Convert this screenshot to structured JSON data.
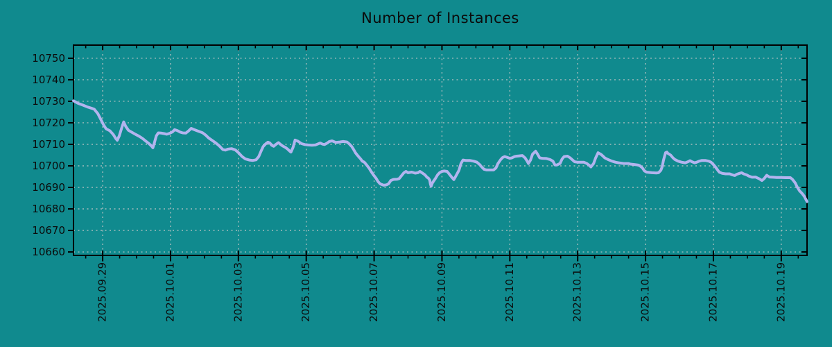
{
  "colors": {
    "background": "#108a8e",
    "line": "#b2b4ee",
    "grid": "#c2c6c6",
    "frame": "#000000",
    "text": "#0b0b0b"
  },
  "chart_data": {
    "type": "line",
    "title": "Number of Instances",
    "xlabel": "",
    "ylabel": "",
    "legend": false,
    "grid": true,
    "x_tick_labels": [
      "2025.09.29",
      "2025.10.01",
      "2025.10.03",
      "2025.10.05",
      "2025.10.07",
      "2025.10.09",
      "2025.10.11",
      "2025.10.13",
      "2025.10.15",
      "2025.10.17",
      "2025.10.19"
    ],
    "x_tick_days": [
      0,
      2,
      4,
      6,
      8,
      10,
      12,
      14,
      16,
      18,
      20
    ],
    "x_minor_tick_step_days": 0.5,
    "xlim_days": [
      -0.86,
      20.76
    ],
    "y_ticks": [
      10660,
      10670,
      10680,
      10690,
      10700,
      10710,
      10720,
      10730,
      10740,
      10750
    ],
    "ylim": [
      10658.4,
      10756.1
    ],
    "series": [
      {
        "name": "instances",
        "points": [
          [
            -0.86,
            10730.2
          ],
          [
            -0.72,
            10729.0
          ],
          [
            -0.58,
            10728.2
          ],
          [
            -0.44,
            10727.3
          ],
          [
            -0.33,
            10726.8
          ],
          [
            -0.25,
            10726.3
          ],
          [
            -0.14,
            10724.2
          ],
          [
            -0.06,
            10721.8
          ],
          [
            0.02,
            10719.2
          ],
          [
            0.1,
            10717.2
          ],
          [
            0.21,
            10716.3
          ],
          [
            0.31,
            10714.6
          ],
          [
            0.39,
            10712.6
          ],
          [
            0.43,
            10711.9
          ],
          [
            0.49,
            10714.0
          ],
          [
            0.56,
            10717.6
          ],
          [
            0.62,
            10720.4
          ],
          [
            0.68,
            10718.3
          ],
          [
            0.76,
            10716.5
          ],
          [
            0.86,
            10715.6
          ],
          [
            0.97,
            10714.6
          ],
          [
            1.07,
            10713.8
          ],
          [
            1.17,
            10712.8
          ],
          [
            1.27,
            10711.5
          ],
          [
            1.36,
            10710.4
          ],
          [
            1.44,
            10709.2
          ],
          [
            1.48,
            10708.4
          ],
          [
            1.52,
            10710.5
          ],
          [
            1.58,
            10713.9
          ],
          [
            1.64,
            10715.3
          ],
          [
            1.73,
            10715.2
          ],
          [
            1.81,
            10715.0
          ],
          [
            1.89,
            10714.7
          ],
          [
            1.97,
            10715.1
          ],
          [
            2.06,
            10715.8
          ],
          [
            2.12,
            10716.8
          ],
          [
            2.2,
            10716.4
          ],
          [
            2.28,
            10715.7
          ],
          [
            2.36,
            10715.3
          ],
          [
            2.45,
            10715.2
          ],
          [
            2.53,
            10716.2
          ],
          [
            2.61,
            10717.4
          ],
          [
            2.69,
            10716.9
          ],
          [
            2.77,
            10716.4
          ],
          [
            2.86,
            10715.9
          ],
          [
            2.94,
            10715.4
          ],
          [
            3.04,
            10714.2
          ],
          [
            3.12,
            10713.0
          ],
          [
            3.23,
            10711.8
          ],
          [
            3.33,
            10710.7
          ],
          [
            3.43,
            10709.4
          ],
          [
            3.54,
            10707.6
          ],
          [
            3.62,
            10707.3
          ],
          [
            3.7,
            10707.8
          ],
          [
            3.8,
            10708.0
          ],
          [
            3.91,
            10707.4
          ],
          [
            4.01,
            10706.0
          ],
          [
            4.11,
            10704.3
          ],
          [
            4.21,
            10703.2
          ],
          [
            4.32,
            10702.7
          ],
          [
            4.42,
            10702.5
          ],
          [
            4.52,
            10702.8
          ],
          [
            4.6,
            10704.3
          ],
          [
            4.67,
            10706.9
          ],
          [
            4.73,
            10709.0
          ],
          [
            4.81,
            10710.3
          ],
          [
            4.87,
            10711.0
          ],
          [
            4.93,
            10710.6
          ],
          [
            4.98,
            10709.6
          ],
          [
            5.04,
            10709.1
          ],
          [
            5.1,
            10709.9
          ],
          [
            5.18,
            10710.8
          ],
          [
            5.24,
            10710.0
          ],
          [
            5.3,
            10709.3
          ],
          [
            5.39,
            10708.5
          ],
          [
            5.45,
            10707.8
          ],
          [
            5.51,
            10706.9
          ],
          [
            5.55,
            10706.4
          ],
          [
            5.61,
            10708.5
          ],
          [
            5.67,
            10712.0
          ],
          [
            5.76,
            10711.4
          ],
          [
            5.86,
            10710.3
          ],
          [
            5.96,
            10709.9
          ],
          [
            6.06,
            10709.7
          ],
          [
            6.17,
            10709.6
          ],
          [
            6.27,
            10709.7
          ],
          [
            6.33,
            10710.1
          ],
          [
            6.41,
            10710.6
          ],
          [
            6.48,
            10710.1
          ],
          [
            6.54,
            10709.9
          ],
          [
            6.62,
            10710.6
          ],
          [
            6.68,
            10711.3
          ],
          [
            6.76,
            10711.6
          ],
          [
            6.87,
            10710.9
          ],
          [
            6.99,
            10711.1
          ],
          [
            7.09,
            10711.3
          ],
          [
            7.2,
            10711.1
          ],
          [
            7.26,
            10710.3
          ],
          [
            7.34,
            10709.0
          ],
          [
            7.4,
            10707.5
          ],
          [
            7.46,
            10705.9
          ],
          [
            7.54,
            10704.3
          ],
          [
            7.61,
            10703.1
          ],
          [
            7.65,
            10702.2
          ],
          [
            7.71,
            10701.7
          ],
          [
            7.77,
            10700.6
          ],
          [
            7.85,
            10699.0
          ],
          [
            7.91,
            10697.4
          ],
          [
            7.98,
            10695.8
          ],
          [
            8.06,
            10694.2
          ],
          [
            8.12,
            10692.6
          ],
          [
            8.18,
            10691.6
          ],
          [
            8.28,
            10691.0
          ],
          [
            8.37,
            10691.2
          ],
          [
            8.43,
            10691.7
          ],
          [
            8.49,
            10693.2
          ],
          [
            8.57,
            10693.7
          ],
          [
            8.68,
            10693.8
          ],
          [
            8.74,
            10694.1
          ],
          [
            8.8,
            10695.3
          ],
          [
            8.88,
            10696.8
          ],
          [
            8.94,
            10697.4
          ],
          [
            9.0,
            10696.8
          ],
          [
            9.11,
            10697.1
          ],
          [
            9.21,
            10696.6
          ],
          [
            9.29,
            10696.8
          ],
          [
            9.35,
            10697.4
          ],
          [
            9.41,
            10696.8
          ],
          [
            9.5,
            10695.8
          ],
          [
            9.56,
            10694.7
          ],
          [
            9.6,
            10694.3
          ],
          [
            9.64,
            10693.4
          ],
          [
            9.66,
            10691.5
          ],
          [
            9.68,
            10690.5
          ],
          [
            9.72,
            10692.1
          ],
          [
            9.81,
            10694.2
          ],
          [
            9.87,
            10695.8
          ],
          [
            9.93,
            10696.8
          ],
          [
            10.0,
            10697.4
          ],
          [
            10.06,
            10697.6
          ],
          [
            10.15,
            10697.4
          ],
          [
            10.21,
            10696.3
          ],
          [
            10.29,
            10694.7
          ],
          [
            10.35,
            10693.6
          ],
          [
            10.41,
            10695.3
          ],
          [
            10.5,
            10697.9
          ],
          [
            10.56,
            10701.1
          ],
          [
            10.62,
            10702.7
          ],
          [
            10.7,
            10702.5
          ],
          [
            10.82,
            10702.5
          ],
          [
            10.93,
            10702.2
          ],
          [
            11.03,
            10701.7
          ],
          [
            11.11,
            10700.6
          ],
          [
            11.17,
            10699.5
          ],
          [
            11.24,
            10698.4
          ],
          [
            11.32,
            10698.1
          ],
          [
            11.42,
            10698.1
          ],
          [
            11.52,
            10698.1
          ],
          [
            11.59,
            10699.0
          ],
          [
            11.65,
            10701.1
          ],
          [
            11.73,
            10702.9
          ],
          [
            11.79,
            10703.9
          ],
          [
            11.85,
            10704.3
          ],
          [
            11.93,
            10703.9
          ],
          [
            12.0,
            10703.5
          ],
          [
            12.06,
            10703.7
          ],
          [
            12.14,
            10704.3
          ],
          [
            12.2,
            10704.5
          ],
          [
            12.26,
            10704.6
          ],
          [
            12.37,
            10704.8
          ],
          [
            12.45,
            10703.7
          ],
          [
            12.51,
            10702.2
          ],
          [
            12.55,
            10701.1
          ],
          [
            12.61,
            10702.7
          ],
          [
            12.67,
            10705.4
          ],
          [
            12.76,
            10706.8
          ],
          [
            12.82,
            10705.4
          ],
          [
            12.88,
            10703.7
          ],
          [
            12.96,
            10703.5
          ],
          [
            13.08,
            10703.4
          ],
          [
            13.19,
            10702.9
          ],
          [
            13.27,
            10702.2
          ],
          [
            13.33,
            10700.4
          ],
          [
            13.39,
            10700.4
          ],
          [
            13.48,
            10701.1
          ],
          [
            13.54,
            10703.2
          ],
          [
            13.6,
            10704.3
          ],
          [
            13.7,
            10704.5
          ],
          [
            13.78,
            10703.7
          ],
          [
            13.85,
            10702.7
          ],
          [
            13.91,
            10701.9
          ],
          [
            13.99,
            10701.7
          ],
          [
            14.08,
            10701.7
          ],
          [
            14.18,
            10701.7
          ],
          [
            14.27,
            10701.1
          ],
          [
            14.33,
            10700.4
          ],
          [
            14.39,
            10699.5
          ],
          [
            14.47,
            10701.1
          ],
          [
            14.53,
            10703.7
          ],
          [
            14.6,
            10706.1
          ],
          [
            14.68,
            10705.4
          ],
          [
            14.74,
            10704.6
          ],
          [
            14.8,
            10703.7
          ],
          [
            14.9,
            10702.9
          ],
          [
            15.01,
            10702.2
          ],
          [
            15.11,
            10701.7
          ],
          [
            15.21,
            10701.4
          ],
          [
            15.36,
            10701.1
          ],
          [
            15.5,
            10701.1
          ],
          [
            15.56,
            10700.8
          ],
          [
            15.67,
            10700.6
          ],
          [
            15.77,
            10700.4
          ],
          [
            15.83,
            10700.1
          ],
          [
            15.91,
            10699.0
          ],
          [
            15.97,
            10697.6
          ],
          [
            16.03,
            10697.1
          ],
          [
            16.18,
            10696.8
          ],
          [
            16.32,
            10696.7
          ],
          [
            16.38,
            10696.8
          ],
          [
            16.45,
            10697.9
          ],
          [
            16.49,
            10699.5
          ],
          [
            16.53,
            10702.7
          ],
          [
            16.59,
            10706.1
          ],
          [
            16.63,
            10706.4
          ],
          [
            16.65,
            10705.9
          ],
          [
            16.74,
            10705.0
          ],
          [
            16.8,
            10703.9
          ],
          [
            16.86,
            10703.0
          ],
          [
            16.96,
            10702.2
          ],
          [
            17.06,
            10701.7
          ],
          [
            17.17,
            10701.4
          ],
          [
            17.25,
            10701.9
          ],
          [
            17.31,
            10702.4
          ],
          [
            17.37,
            10701.9
          ],
          [
            17.45,
            10701.4
          ],
          [
            17.51,
            10701.7
          ],
          [
            17.58,
            10702.2
          ],
          [
            17.66,
            10702.5
          ],
          [
            17.76,
            10702.5
          ],
          [
            17.86,
            10702.2
          ],
          [
            17.93,
            10701.7
          ],
          [
            17.99,
            10700.8
          ],
          [
            18.05,
            10699.7
          ],
          [
            18.11,
            10698.4
          ],
          [
            18.17,
            10697.1
          ],
          [
            18.26,
            10696.5
          ],
          [
            18.36,
            10696.3
          ],
          [
            18.48,
            10696.3
          ],
          [
            18.56,
            10695.8
          ],
          [
            18.63,
            10695.5
          ],
          [
            18.69,
            10696.1
          ],
          [
            18.77,
            10696.5
          ],
          [
            18.83,
            10696.8
          ],
          [
            18.89,
            10696.3
          ],
          [
            18.98,
            10695.8
          ],
          [
            19.04,
            10695.3
          ],
          [
            19.14,
            10694.7
          ],
          [
            19.24,
            10694.8
          ],
          [
            19.35,
            10694.0
          ],
          [
            19.43,
            10693.2
          ],
          [
            19.49,
            10694.0
          ],
          [
            19.57,
            10695.6
          ],
          [
            19.65,
            10694.8
          ],
          [
            19.76,
            10694.7
          ],
          [
            19.86,
            10694.6
          ],
          [
            20.0,
            10694.6
          ],
          [
            20.13,
            10694.5
          ],
          [
            20.27,
            10694.5
          ],
          [
            20.33,
            10693.7
          ],
          [
            20.41,
            10692.1
          ],
          [
            20.47,
            10690.2
          ],
          [
            20.54,
            10688.4
          ],
          [
            20.62,
            10687.1
          ],
          [
            20.68,
            10685.8
          ],
          [
            20.74,
            10684.0
          ],
          [
            20.76,
            10683.4
          ]
        ]
      }
    ]
  }
}
